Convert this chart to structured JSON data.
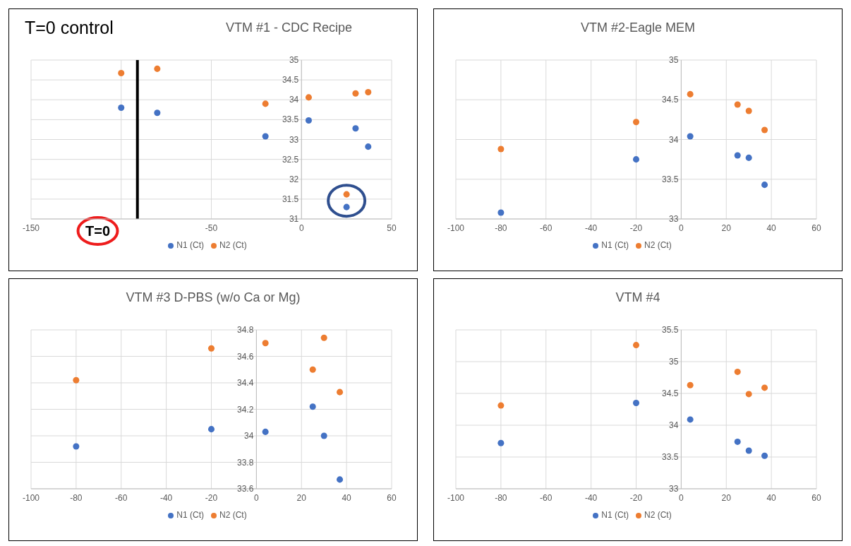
{
  "chart_data": [
    {
      "type": "scatter",
      "title": "VTM #1 - CDC Recipe",
      "xlim": [
        -150,
        50
      ],
      "xticks": [
        -150,
        {
          "value": -100,
          "label": null
        },
        -50,
        0,
        50
      ],
      "ylim": [
        31,
        35
      ],
      "yticks": [
        31,
        31.5,
        32,
        32.5,
        33,
        33.5,
        34,
        34.5,
        35
      ],
      "grid": true,
      "legend": "bottom",
      "marker": "circle",
      "x": [
        -100,
        -80,
        -20,
        4,
        25,
        30,
        37
      ],
      "series": [
        {
          "name": "N1 (Ct)",
          "color": "#4472c4",
          "values": [
            33.8,
            33.67,
            33.08,
            33.48,
            31.3,
            33.28,
            32.82
          ]
        },
        {
          "name": "N2 (Ct)",
          "color": "#ed7d31",
          "values": [
            34.67,
            34.78,
            33.9,
            34.06,
            31.62,
            34.16,
            34.19
          ]
        }
      ],
      "ref_lines": [
        {
          "axis": "x",
          "value": -91,
          "color": "#000000"
        }
      ],
      "annotations": [
        "T=0 control",
        "T=0"
      ]
    },
    {
      "type": "scatter",
      "title": "VTM #2-Eagle MEM",
      "xlim": [
        -100,
        60
      ],
      "xticks": [
        -100,
        -80,
        -60,
        -40,
        -20,
        0,
        20,
        40,
        60
      ],
      "ylim": [
        33,
        35
      ],
      "yticks": [
        33,
        33.5,
        34,
        34.5,
        35
      ],
      "grid": true,
      "legend": "bottom",
      "marker": "circle",
      "x": [
        -80,
        -20,
        4,
        25,
        30,
        37
      ],
      "series": [
        {
          "name": "N1 (Ct)",
          "color": "#4472c4",
          "values": [
            33.08,
            33.75,
            34.04,
            33.8,
            33.77,
            33.43
          ]
        },
        {
          "name": "N2 (Ct)",
          "color": "#ed7d31",
          "values": [
            33.88,
            34.22,
            34.57,
            34.44,
            34.36,
            34.12
          ]
        }
      ]
    },
    {
      "type": "scatter",
      "title": "VTM #3 D-PBS (w/o Ca or Mg)",
      "xlim": [
        -100,
        60
      ],
      "xticks": [
        -100,
        -80,
        -60,
        -40,
        -20,
        0,
        20,
        40,
        60
      ],
      "ylim": [
        33.6,
        34.8
      ],
      "yticks": [
        33.6,
        33.8,
        34,
        34.2,
        34.4,
        34.6,
        34.8
      ],
      "grid": true,
      "legend": "bottom",
      "marker": "circle",
      "x": [
        -80,
        -20,
        4,
        25,
        30,
        37
      ],
      "series": [
        {
          "name": "N1 (Ct)",
          "color": "#4472c4",
          "values": [
            33.92,
            34.05,
            34.03,
            34.22,
            34.0,
            33.67
          ]
        },
        {
          "name": "N2 (Ct)",
          "color": "#ed7d31",
          "values": [
            34.42,
            34.66,
            34.7,
            34.5,
            34.74,
            34.33
          ]
        }
      ]
    },
    {
      "type": "scatter",
      "title": "VTM #4",
      "xlim": [
        -100,
        60
      ],
      "xticks": [
        -100,
        -80,
        -60,
        -40,
        -20,
        0,
        20,
        40,
        60
      ],
      "ylim": [
        33,
        35.5
      ],
      "yticks": [
        33,
        33.5,
        34,
        34.5,
        35,
        35.5
      ],
      "grid": true,
      "legend": "bottom",
      "marker": "circle",
      "x": [
        -80,
        -20,
        4,
        25,
        30,
        37
      ],
      "series": [
        {
          "name": "N1 (Ct)",
          "color": "#4472c4",
          "values": [
            33.72,
            34.35,
            34.09,
            33.74,
            33.6,
            33.52
          ]
        },
        {
          "name": "N2 (Ct)",
          "color": "#ed7d31",
          "values": [
            34.31,
            35.26,
            34.63,
            34.84,
            34.49,
            34.59
          ]
        }
      ]
    }
  ]
}
